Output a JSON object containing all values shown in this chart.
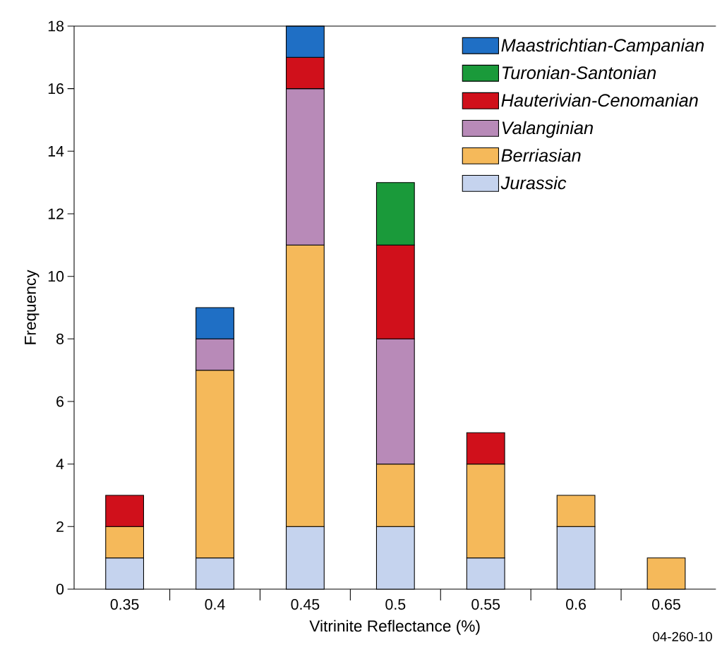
{
  "chart_data": {
    "type": "bar",
    "stacked": true,
    "categories": [
      "0.35",
      "0.4",
      "0.45",
      "0.5",
      "0.55",
      "0.6",
      "0.65"
    ],
    "xlabel": "Vitrinite Reflectance (%)",
    "ylabel": "Frequency",
    "ylim": [
      0,
      18
    ],
    "yticks": [
      0,
      2,
      4,
      6,
      8,
      10,
      12,
      14,
      16,
      18
    ],
    "legend": "top right",
    "annotations": [
      "04-260-10"
    ],
    "series": [
      {
        "name": "Jurassic",
        "color": "#c5d3ee",
        "values": [
          1,
          1,
          2,
          2,
          1,
          2,
          null
        ]
      },
      {
        "name": "Berriasian",
        "color": "#f5b95a",
        "values": [
          1,
          6,
          9,
          2,
          3,
          1,
          1
        ]
      },
      {
        "name": "Valanginian",
        "color": "#b88ab8",
        "values": [
          null,
          1,
          5,
          4,
          null,
          null,
          null
        ]
      },
      {
        "name": "Hauterivian-Cenomanian",
        "color": "#d0101b",
        "values": [
          1,
          null,
          1,
          3,
          1,
          null,
          null
        ]
      },
      {
        "name": "Turonian-Santonian",
        "color": "#1a9a3a",
        "values": [
          null,
          null,
          null,
          2,
          null,
          null,
          null
        ]
      },
      {
        "name": "Maastrichtian-Campanian",
        "color": "#1f6fc5",
        "values": [
          null,
          1,
          1,
          null,
          null,
          null,
          null
        ]
      }
    ]
  }
}
